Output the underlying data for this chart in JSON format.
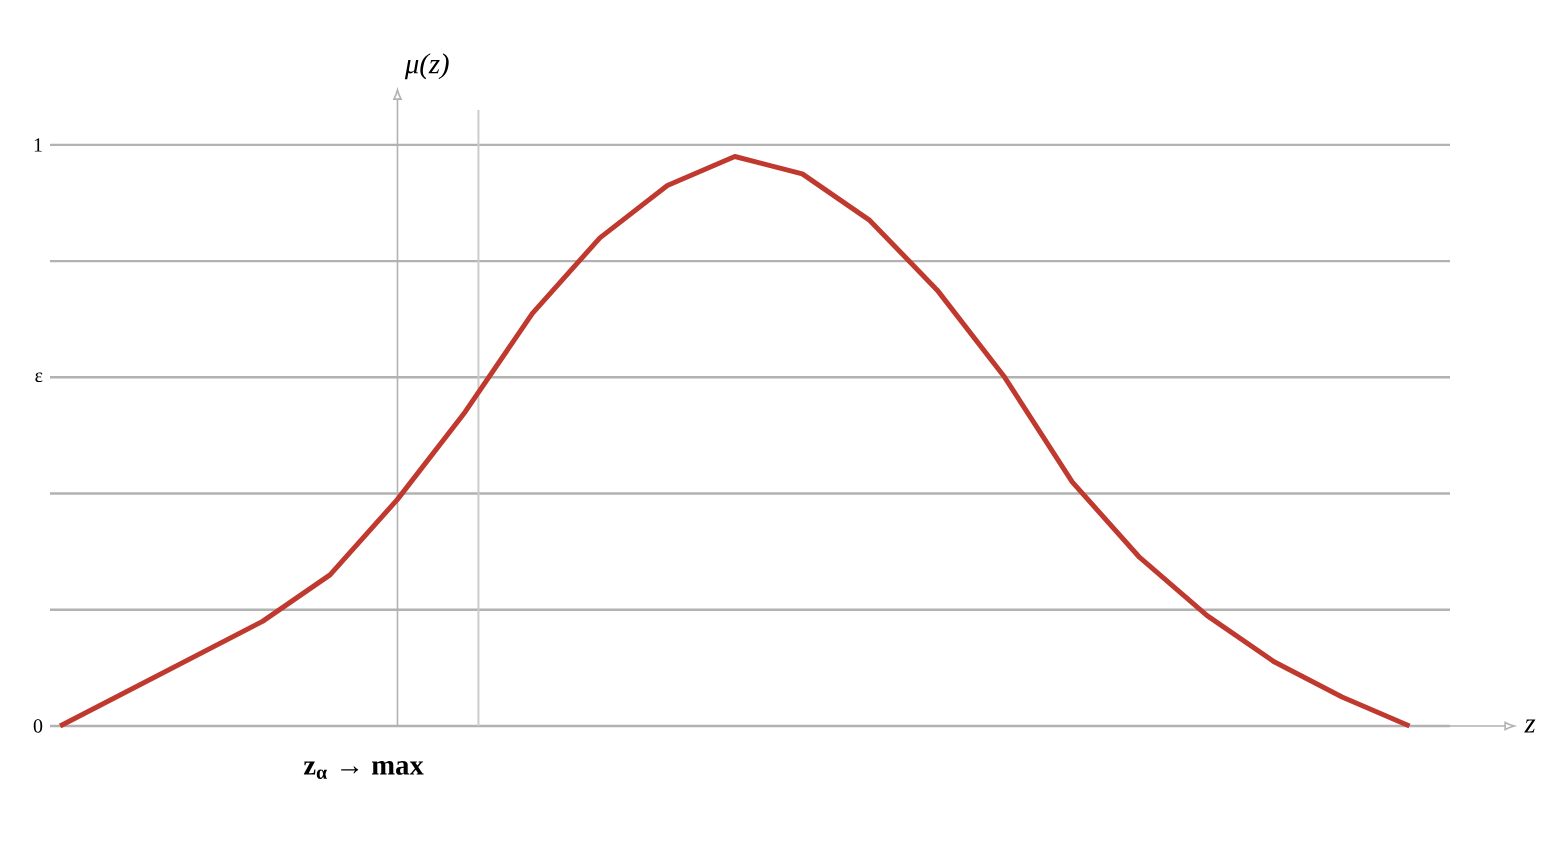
{
  "chart_data": {
    "type": "line",
    "xlabel": "z",
    "ylabel": "μ(z)",
    "categories": [
      null,
      null,
      null,
      null,
      null,
      null,
      null,
      null,
      null,
      null,
      null,
      null,
      null,
      null,
      null,
      null,
      null,
      null,
      null,
      null,
      null
    ],
    "series": [
      {
        "color": "#c0392f",
        "values": [
          0,
          0.06,
          0.12,
          0.18,
          0.26,
          0.39,
          0.54,
          0.71,
          0.84,
          0.93,
          0.98,
          0.95,
          0.87,
          0.75,
          0.6,
          0.42,
          0.29,
          0.19,
          0.11,
          0.05,
          0
        ]
      }
    ],
    "ylim": [
      0,
      1.06
    ],
    "yticks": [
      0,
      {
        "value": 0.2,
        "label": null
      },
      {
        "value": 0.4,
        "label": null
      },
      {
        "value": 0.6,
        "label": "ε"
      },
      {
        "value": 0.8,
        "label": null
      },
      1
    ],
    "grid": "y",
    "marker": "none",
    "line_style": "solid",
    "annotations": [
      "z$_{α}$ → max"
    ]
  }
}
